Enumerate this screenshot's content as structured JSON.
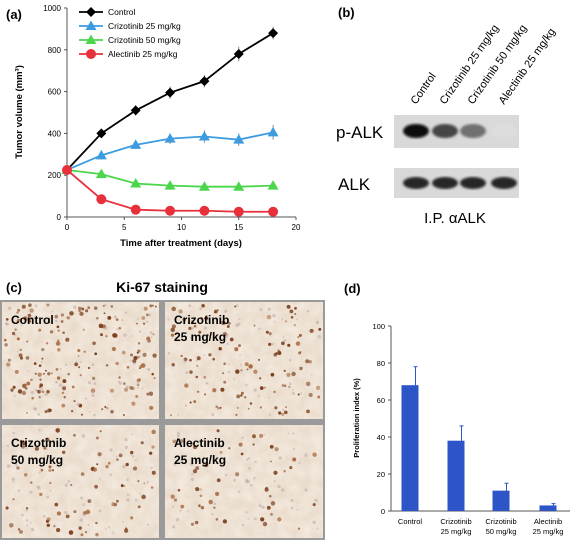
{
  "panels": {
    "a": "(a)",
    "b": "(b)",
    "c": "(c)",
    "d": "(d)"
  },
  "chart_data": [
    {
      "type": "line",
      "xlabel": "Time after treatment (days)",
      "ylabel": "Tumor volume (mm³)",
      "xlim": [
        0,
        20
      ],
      "ylim": [
        0,
        1000
      ],
      "xticks": [
        "0",
        "5",
        "10",
        "15",
        "20"
      ],
      "yticks": [
        "0",
        "200",
        "400",
        "600",
        "800",
        "1000"
      ],
      "legend_position": "top-left",
      "series": [
        {
          "name": "Control",
          "color": "#000000",
          "marker": "diamond",
          "x": [
            0,
            3,
            6,
            9,
            12,
            15,
            18
          ],
          "y": [
            225,
            400,
            510,
            595,
            650,
            780,
            880
          ],
          "err": [
            15,
            20,
            25,
            30,
            30,
            35,
            30
          ]
        },
        {
          "name": "Crizotinib 25 mg/kg",
          "color": "#3d9be0",
          "marker": "triangle",
          "x": [
            0,
            3,
            6,
            9,
            12,
            15,
            18
          ],
          "y": [
            225,
            295,
            345,
            375,
            385,
            370,
            405
          ],
          "err": [
            10,
            20,
            20,
            25,
            30,
            30,
            35
          ]
        },
        {
          "name": "Crizotinib 50 mg/kg",
          "color": "#4cd64c",
          "marker": "triangle",
          "x": [
            0,
            3,
            6,
            9,
            12,
            15,
            18
          ],
          "y": [
            225,
            205,
            160,
            150,
            145,
            145,
            150
          ],
          "err": [
            10,
            15,
            15,
            20,
            15,
            15,
            15
          ]
        },
        {
          "name": "Alectinib 25 mg/kg",
          "color": "#e8303a",
          "marker": "circle",
          "x": [
            0,
            3,
            6,
            9,
            12,
            15,
            18
          ],
          "y": [
            225,
            85,
            35,
            30,
            30,
            25,
            25
          ],
          "err": [
            10,
            10,
            5,
            5,
            5,
            5,
            5
          ]
        }
      ]
    },
    {
      "type": "bar",
      "ylabel": "Proliferation index (%)",
      "ylim": [
        0,
        100
      ],
      "yticks": [
        "0",
        "20",
        "40",
        "60",
        "80",
        "100"
      ],
      "bar_color": "#2d55c8",
      "categories": [
        {
          "line1": "Control",
          "line2": ""
        },
        {
          "line1": "Crizotinib",
          "line2": "25 mg/kg"
        },
        {
          "line1": "Crizotinib",
          "line2": "50 mg/kg"
        },
        {
          "line1": "Alectinib",
          "line2": "25 mg/kg"
        }
      ],
      "values": [
        68,
        38,
        11,
        3
      ],
      "errors": [
        10,
        8,
        4,
        1
      ]
    }
  ],
  "blot": {
    "columns": [
      "Control",
      "Crizotinib 25 mg/kg",
      "Crizotinib 50 mg/kg",
      "Alectinib 25 mg/kg"
    ],
    "rows": [
      {
        "label": "p-ALK",
        "intensities": [
          1.0,
          0.75,
          0.55,
          0.04
        ]
      },
      {
        "label": "ALK",
        "intensities": [
          0.9,
          0.9,
          0.9,
          0.9
        ]
      }
    ],
    "ip_label": "I.P. αALK"
  },
  "ki67": {
    "title": "Ki-67 staining",
    "tiles": [
      {
        "line1": "Control",
        "line2": "",
        "density": 1.0
      },
      {
        "line1": "Crizotinib",
        "line2": "25 mg/kg",
        "density": 0.7
      },
      {
        "line1": "Crizotinib",
        "line2": "50 mg/kg",
        "density": 0.45
      },
      {
        "line1": "Alectinib",
        "line2": "25 mg/kg",
        "density": 0.3
      }
    ]
  }
}
